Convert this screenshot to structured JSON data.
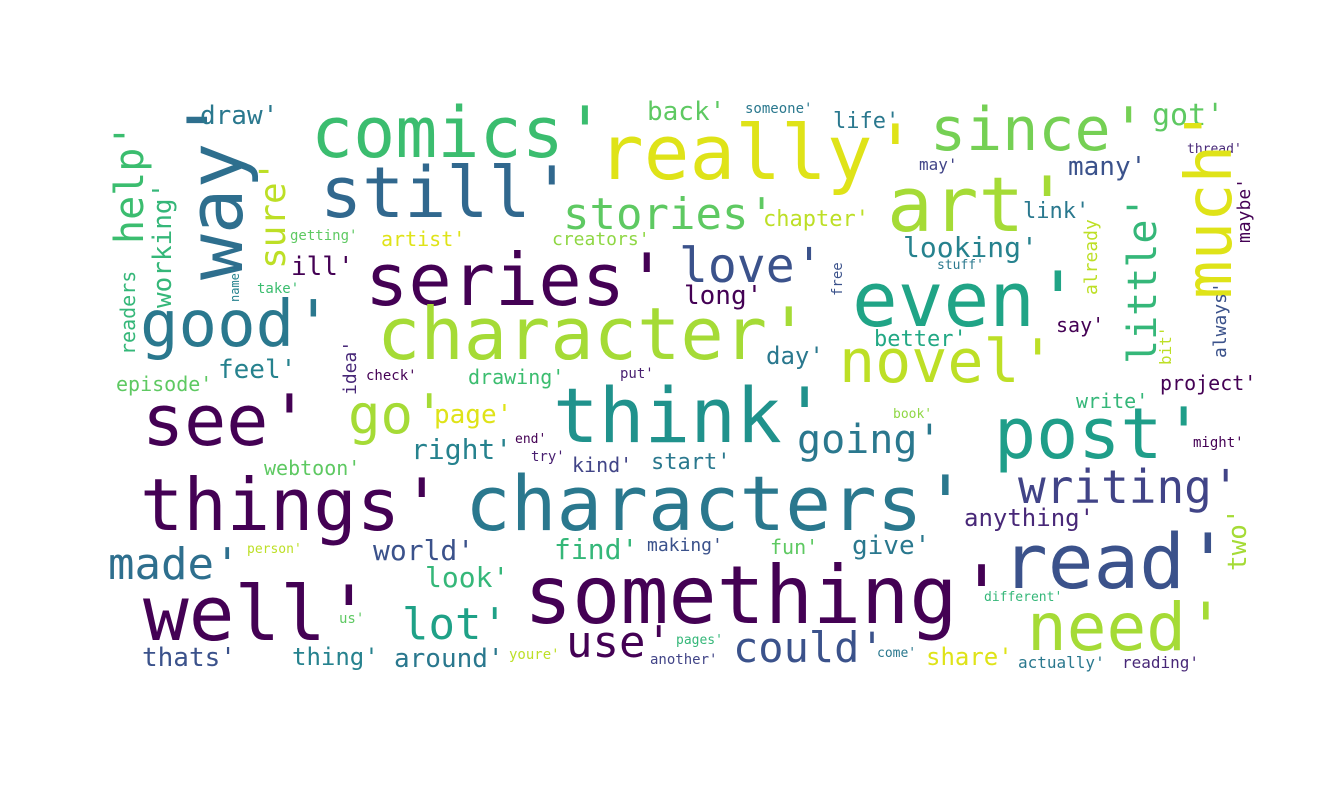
{
  "words": [
    {
      "text": "comics'",
      "color": "#3bbd6f"
    },
    {
      "text": "really'",
      "color": "#dfe318"
    },
    {
      "text": "since'",
      "color": "#75d054"
    },
    {
      "text": "got'",
      "color": "#5ec962"
    },
    {
      "text": "way'",
      "color": "#2e6f8e"
    },
    {
      "text": "help'",
      "color": "#3bbd6f"
    },
    {
      "text": "draw'",
      "color": "#2a788e"
    },
    {
      "text": "back'",
      "color": "#5ec962"
    },
    {
      "text": "someone'",
      "color": "#2a788e"
    },
    {
      "text": "life'",
      "color": "#2a788e"
    },
    {
      "text": "thread'",
      "color": "#482878"
    },
    {
      "text": "still'",
      "color": "#31688e"
    },
    {
      "text": "art'",
      "color": "#a5db36"
    },
    {
      "text": "much'",
      "color": "#dfe318"
    },
    {
      "text": "may'",
      "color": "#414487"
    },
    {
      "text": "many'",
      "color": "#3b528b"
    },
    {
      "text": "sure'",
      "color": "#bddf26"
    },
    {
      "text": "working'",
      "color": "#35b779"
    },
    {
      "text": "stories'",
      "color": "#5ec962"
    },
    {
      "text": "chapter'",
      "color": "#bddf26"
    },
    {
      "text": "link'",
      "color": "#2a788e"
    },
    {
      "text": "getting'",
      "color": "#5ec962"
    },
    {
      "text": "artist'",
      "color": "#dfe318"
    },
    {
      "text": "creators'",
      "color": "#8fd744"
    },
    {
      "text": "looking'",
      "color": "#26828e"
    },
    {
      "text": "already",
      "color": "#bddf26"
    },
    {
      "text": "maybe'",
      "color": "#440154"
    },
    {
      "text": "little'",
      "color": "#35b779"
    },
    {
      "text": "series'",
      "color": "#440154"
    },
    {
      "text": "love'",
      "color": "#3b528b"
    },
    {
      "text": "even'",
      "color": "#20a486"
    },
    {
      "text": "ill'",
      "color": "#440154"
    },
    {
      "text": "stuff'",
      "color": "#2a788e"
    },
    {
      "text": "name'",
      "color": "#26828e"
    },
    {
      "text": "take'",
      "color": "#3bbd6f"
    },
    {
      "text": "long'",
      "color": "#440154"
    },
    {
      "text": "free",
      "color": "#3b528b"
    },
    {
      "text": "good'",
      "color": "#2a788e"
    },
    {
      "text": "character'",
      "color": "#a5db36"
    },
    {
      "text": "readers",
      "color": "#35b779"
    },
    {
      "text": "say'",
      "color": "#440154"
    },
    {
      "text": "feel'",
      "color": "#26828e"
    },
    {
      "text": "better'",
      "color": "#22a884"
    },
    {
      "text": "always'",
      "color": "#3b528b"
    },
    {
      "text": "day'",
      "color": "#2a788e"
    },
    {
      "text": "idea'",
      "color": "#482878"
    },
    {
      "text": "novel'",
      "color": "#bddf26"
    },
    {
      "text": "bit'",
      "color": "#bddf26"
    },
    {
      "text": "episode'",
      "color": "#5ec962"
    },
    {
      "text": "check'",
      "color": "#440154"
    },
    {
      "text": "drawing'",
      "color": "#3bbd6f"
    },
    {
      "text": "put'",
      "color": "#481f70"
    },
    {
      "text": "project'",
      "color": "#440154"
    },
    {
      "text": "see'",
      "color": "#440154"
    },
    {
      "text": "go'",
      "color": "#a5db36"
    },
    {
      "text": "page'",
      "color": "#dfe318"
    },
    {
      "text": "think'",
      "color": "#20928c"
    },
    {
      "text": "book'",
      "color": "#8fd744"
    },
    {
      "text": "write'",
      "color": "#35b779"
    },
    {
      "text": "post'",
      "color": "#1f9e89"
    },
    {
      "text": "end'",
      "color": "#440154"
    },
    {
      "text": "going'",
      "color": "#2a788e"
    },
    {
      "text": "right'",
      "color": "#26828e"
    },
    {
      "text": "might'",
      "color": "#440154"
    },
    {
      "text": "try'",
      "color": "#481f70"
    },
    {
      "text": "kind'",
      "color": "#414487"
    },
    {
      "text": "start'",
      "color": "#2a788e"
    },
    {
      "text": "webtoon'",
      "color": "#5ec962"
    },
    {
      "text": "writing'",
      "color": "#414487"
    },
    {
      "text": "things'",
      "color": "#440154"
    },
    {
      "text": "characters'",
      "color": "#2a788e"
    },
    {
      "text": "anything'",
      "color": "#482878"
    },
    {
      "text": "two'",
      "color": "#a5db36"
    },
    {
      "text": "made'",
      "color": "#2e6f8e"
    },
    {
      "text": "world'",
      "color": "#3b528b"
    },
    {
      "text": "find'",
      "color": "#35b779"
    },
    {
      "text": "making'",
      "color": "#3b528b"
    },
    {
      "text": "fun'",
      "color": "#5ec962"
    },
    {
      "text": "give'",
      "color": "#2a788e"
    },
    {
      "text": "person'",
      "color": "#bddf26"
    },
    {
      "text": "read'",
      "color": "#3b528b"
    },
    {
      "text": "look'",
      "color": "#35b779"
    },
    {
      "text": "something'",
      "color": "#440154"
    },
    {
      "text": "well'",
      "color": "#440154"
    },
    {
      "text": "different'",
      "color": "#35b779"
    },
    {
      "text": "lot'",
      "color": "#1fa187"
    },
    {
      "text": "us'",
      "color": "#5ec962"
    },
    {
      "text": "use'",
      "color": "#440154"
    },
    {
      "text": "need'",
      "color": "#a5db36"
    },
    {
      "text": "pages'",
      "color": "#35b779"
    },
    {
      "text": "could'",
      "color": "#3b528b"
    },
    {
      "text": "thats'",
      "color": "#3b528b"
    },
    {
      "text": "thing'",
      "color": "#26828e"
    },
    {
      "text": "around'",
      "color": "#2a788e"
    },
    {
      "text": "youre'",
      "color": "#bddf26"
    },
    {
      "text": "another'",
      "color": "#414487"
    },
    {
      "text": "come'",
      "color": "#2a788e"
    },
    {
      "text": "share'",
      "color": "#dfe318"
    },
    {
      "text": "actually'",
      "color": "#2a788e"
    },
    {
      "text": "reading'",
      "color": "#482878"
    }
  ]
}
